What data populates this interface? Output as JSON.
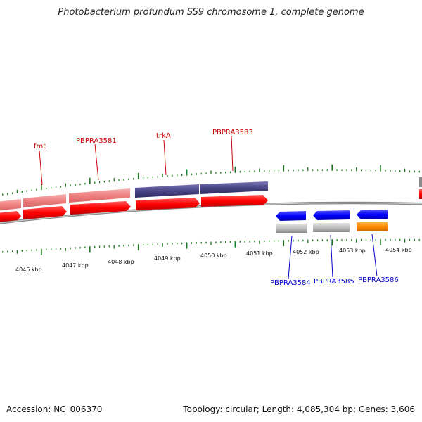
{
  "title": "Photobacterium profundum SS9 chromosome 1, complete genome",
  "accession": "Accession: NC_006370",
  "summary": "Topology: circular; Length: 4,085,304 bp; Genes: 3,606",
  "colors": {
    "forward_gene": "#ff0000",
    "forward_feature": "#ef8080",
    "feature_purple": "#4a4586",
    "reverse_gene": "#0000ff",
    "reverse_feature": "#c0c0c0",
    "reverse_orange": "#ff8c00",
    "tick": "#1a7a1a",
    "backbone": "#808080",
    "label_forward": "#cc0000",
    "label_reverse": "#0000cc"
  },
  "ticks": [
    {
      "label": "4046 kbp"
    },
    {
      "label": "4047 kbp"
    },
    {
      "label": "4048 kbp"
    },
    {
      "label": "4049 kbp"
    },
    {
      "label": "4050 kbp"
    },
    {
      "label": "4051 kbp"
    },
    {
      "label": "4052 kbp"
    },
    {
      "label": "4053 kbp"
    },
    {
      "label": "4054 kbp"
    }
  ],
  "forward_labels": [
    {
      "text": "fmt"
    },
    {
      "text": "PBPRA3581"
    },
    {
      "text": "trkA"
    },
    {
      "text": "PBPRA3583"
    }
  ],
  "reverse_labels": [
    {
      "text": "PBPRA3584"
    },
    {
      "text": "PBPRA3585"
    },
    {
      "text": "PBPRA3586"
    }
  ]
}
